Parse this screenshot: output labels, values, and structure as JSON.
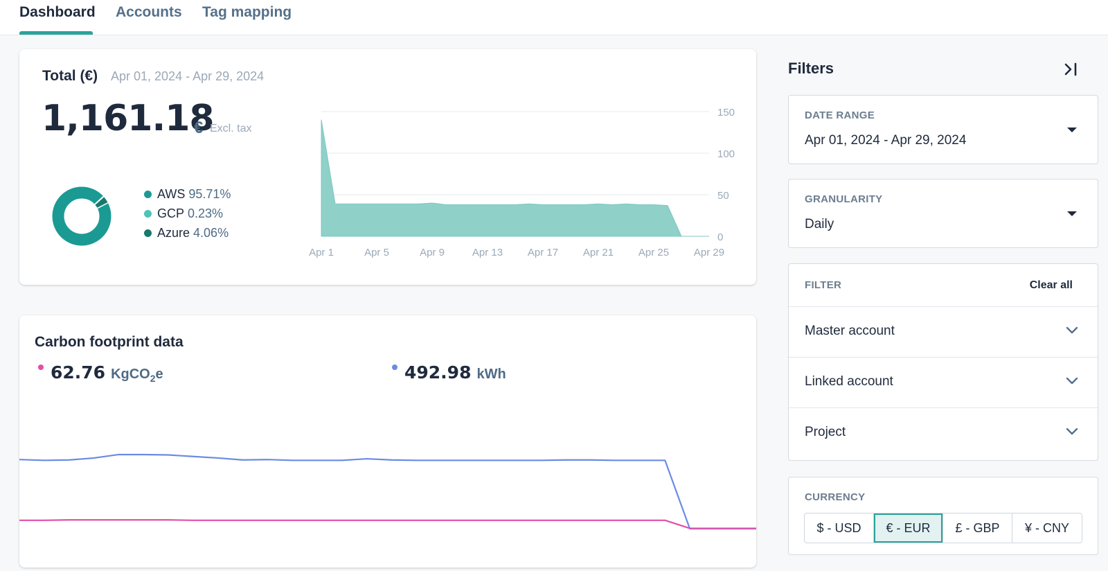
{
  "tabs": [
    {
      "label": "Dashboard",
      "active": true
    },
    {
      "label": "Accounts",
      "active": false
    },
    {
      "label": "Tag mapping",
      "active": false
    }
  ],
  "total": {
    "title": "Total (€)",
    "range": "Apr 01, 2024 - Apr 29, 2024",
    "value": "1,161.18",
    "currency_symbol": "€",
    "tax_note": "Excl. tax"
  },
  "breakdown": [
    {
      "name": "AWS",
      "pct_label": "95.71%",
      "pct": 95.71,
      "color": "#1b9a94"
    },
    {
      "name": "GCP",
      "pct_label": "0.23%",
      "pct": 0.23,
      "color": "#4fc3b8"
    },
    {
      "name": "Azure",
      "pct_label": "4.06%",
      "pct": 4.06,
      "color": "#177a6c"
    }
  ],
  "carbon": {
    "title": "Carbon footprint data",
    "co2_value": "62.76",
    "co2_unit_prefix": "KgCO",
    "co2_unit_sub": "2",
    "co2_unit_suffix": "e",
    "co2_color": "#e14fa7",
    "energy_value": "492.98",
    "energy_unit": "kWh",
    "energy_color": "#6a8be4"
  },
  "filters": {
    "title": "Filters",
    "date_range_label": "DATE RANGE",
    "date_range_value": "Apr 01, 2024 - Apr 29, 2024",
    "granularity_label": "GRANULARITY",
    "granularity_value": "Daily",
    "filter_label": "FILTER",
    "clear_all": "Clear all",
    "rows": [
      "Master account",
      "Linked account",
      "Project"
    ],
    "currency_label": "CURRENCY",
    "currencies": [
      "$ - USD",
      "€ - EUR",
      "£ - GBP",
      "¥ - CNY"
    ],
    "selected_currency": "€ - EUR"
  },
  "chart_data": [
    {
      "type": "area",
      "title": "",
      "x": [
        "Apr 1",
        "Apr 2",
        "Apr 3",
        "Apr 4",
        "Apr 5",
        "Apr 6",
        "Apr 7",
        "Apr 8",
        "Apr 9",
        "Apr 10",
        "Apr 11",
        "Apr 12",
        "Apr 13",
        "Apr 14",
        "Apr 15",
        "Apr 16",
        "Apr 17",
        "Apr 18",
        "Apr 19",
        "Apr 20",
        "Apr 21",
        "Apr 22",
        "Apr 23",
        "Apr 24",
        "Apr 25",
        "Apr 26",
        "Apr 27",
        "Apr 28",
        "Apr 29"
      ],
      "x_ticks": [
        "Apr 1",
        "Apr 5",
        "Apr 9",
        "Apr 13",
        "Apr 17",
        "Apr 21",
        "Apr 25",
        "Apr 29"
      ],
      "y_ticks": [
        "0",
        "50",
        "100",
        "150"
      ],
      "ylim": [
        0,
        150
      ],
      "grid": true,
      "series": [
        {
          "values": [
            140,
            39,
            39,
            39,
            39,
            39,
            39,
            39,
            40,
            38,
            38,
            38,
            38,
            38,
            38,
            39,
            38,
            38,
            38,
            38,
            39,
            38,
            39,
            38,
            38,
            37,
            0,
            0,
            0
          ],
          "color": "#8fd0c9"
        }
      ]
    },
    {
      "type": "line",
      "title": "",
      "x": [
        "Apr 1",
        "Apr 2",
        "Apr 3",
        "Apr 4",
        "Apr 5",
        "Apr 6",
        "Apr 7",
        "Apr 8",
        "Apr 9",
        "Apr 10",
        "Apr 11",
        "Apr 12",
        "Apr 13",
        "Apr 14",
        "Apr 15",
        "Apr 16",
        "Apr 17",
        "Apr 18",
        "Apr 19",
        "Apr 20",
        "Apr 21",
        "Apr 22",
        "Apr 23",
        "Apr 24",
        "Apr 25",
        "Apr 26",
        "Apr 27",
        "Apr 28",
        "Apr 29"
      ],
      "ylim": [
        0,
        22
      ],
      "grid": false,
      "series": [
        {
          "values": [
            18.0,
            17.8,
            17.9,
            18.4,
            19.3,
            19.3,
            19.2,
            18.8,
            18.4,
            17.9,
            18.0,
            17.8,
            17.8,
            17.8,
            18.2,
            17.9,
            17.8,
            17.8,
            17.8,
            17.8,
            17.8,
            17.8,
            17.9,
            17.9,
            17.8,
            17.8,
            17.8,
            0,
            0
          ],
          "color": "#6a8be4"
        },
        {
          "values": [
            2.2,
            2.2,
            2.3,
            2.3,
            2.3,
            2.3,
            2.3,
            2.2,
            2.2,
            2.2,
            2.2,
            2.2,
            2.2,
            2.2,
            2.2,
            2.2,
            2.2,
            2.2,
            2.2,
            2.2,
            2.2,
            2.2,
            2.2,
            2.2,
            2.2,
            2.2,
            2.2,
            0.1,
            0.1
          ],
          "color": "#e14fa7"
        }
      ]
    }
  ]
}
